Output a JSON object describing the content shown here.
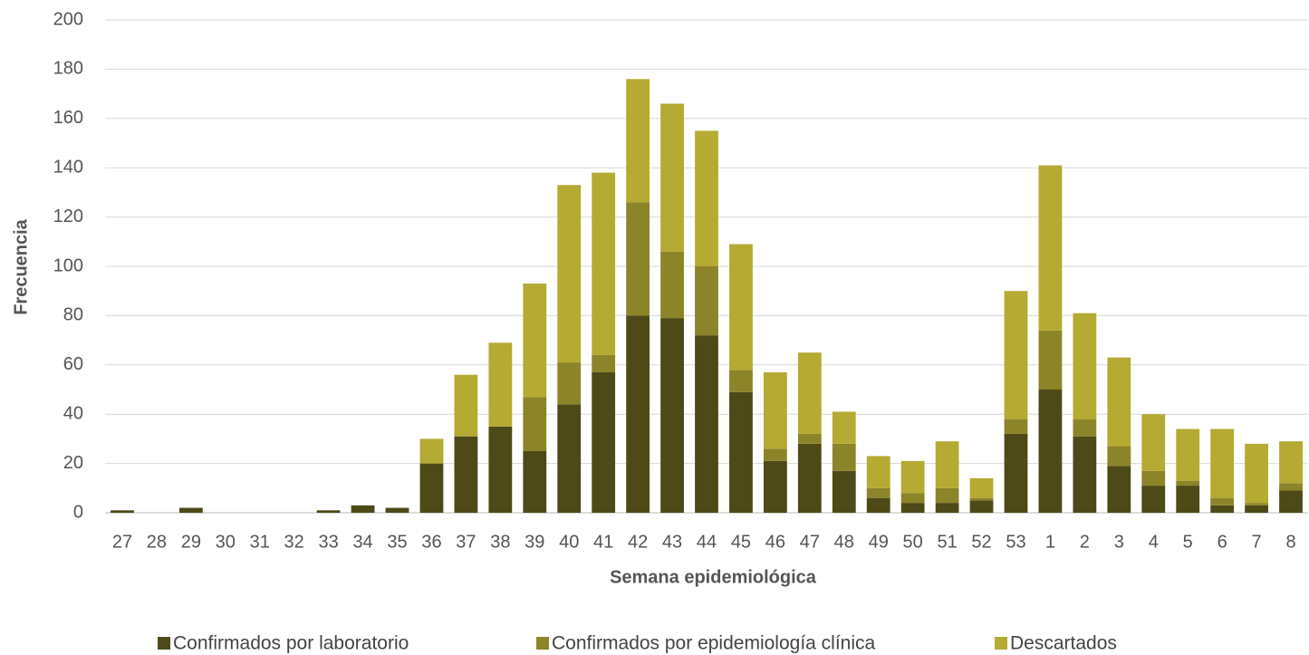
{
  "chart_data": {
    "type": "stacked-bar",
    "x_label": "Semana epidemiológica",
    "y_label": "Frecuencia",
    "categories": [
      "27",
      "28",
      "29",
      "30",
      "31",
      "32",
      "33",
      "34",
      "35",
      "36",
      "37",
      "38",
      "39",
      "40",
      "41",
      "42",
      "43",
      "44",
      "45",
      "46",
      "47",
      "48",
      "49",
      "50",
      "51",
      "52",
      "53",
      "1",
      "2",
      "3",
      "4",
      "5",
      "6",
      "7",
      "8"
    ],
    "series": [
      {
        "name": "Confirmados por laboratorio",
        "color": "#4d4a18",
        "values": [
          1,
          0,
          2,
          0,
          0,
          0,
          1,
          3,
          2,
          20,
          31,
          35,
          25,
          44,
          57,
          80,
          79,
          72,
          49,
          21,
          28,
          17,
          6,
          4,
          4,
          5,
          32,
          50,
          31,
          19,
          11,
          11,
          3,
          3,
          9
        ]
      },
      {
        "name": "Confirmados por epidemiología clínica",
        "color": "#8c8428",
        "values": [
          0,
          0,
          0,
          0,
          0,
          0,
          0,
          0,
          0,
          0,
          0,
          0,
          22,
          17,
          7,
          46,
          27,
          28,
          9,
          5,
          4,
          11,
          4,
          4,
          6,
          1,
          6,
          24,
          7,
          8,
          6,
          2,
          3,
          1,
          3
        ]
      },
      {
        "name": "Descartados",
        "color": "#b5aa32",
        "values": [
          0,
          0,
          0,
          0,
          0,
          0,
          0,
          0,
          0,
          10,
          25,
          34,
          46,
          72,
          74,
          50,
          60,
          55,
          51,
          31,
          33,
          13,
          13,
          13,
          19,
          8,
          52,
          67,
          43,
          36,
          23,
          21,
          28,
          24,
          17
        ]
      }
    ],
    "ylim": [
      0,
      200
    ],
    "yticks": [
      0,
      20,
      40,
      60,
      80,
      100,
      120,
      140,
      160,
      180,
      200
    ],
    "grid": true
  }
}
